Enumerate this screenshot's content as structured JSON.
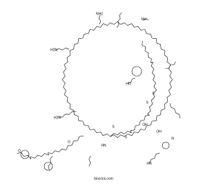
{
  "caption": "biocrick.com",
  "atom_labels": [
    "O",
    "HO",
    "S",
    "S",
    "S",
    "S",
    "NH2",
    "H2N",
    "H2N",
    "HN",
    "OH",
    "NH",
    "HN",
    "O",
    "OH",
    "N"
  ]
}
